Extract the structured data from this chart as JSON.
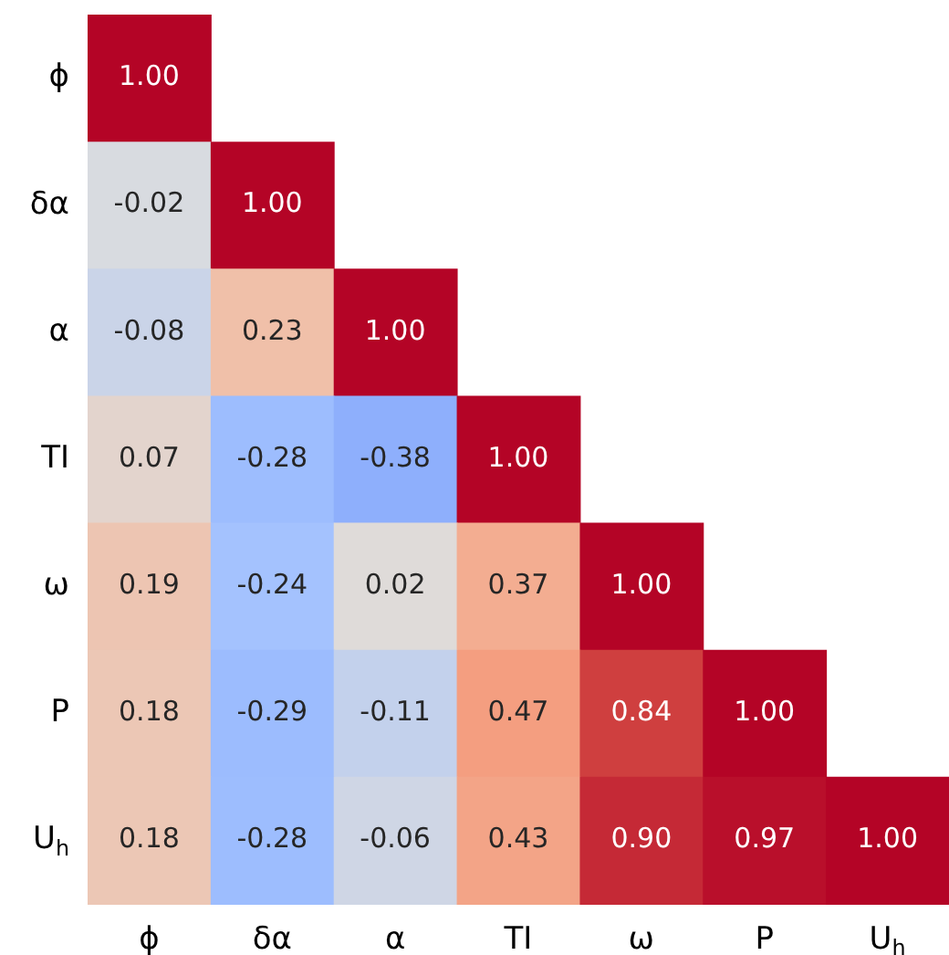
{
  "chart_data": {
    "type": "heatmap",
    "categories": [
      "ϕ",
      "δα",
      "α",
      "TI",
      "ω",
      "P",
      "U$_{h}$"
    ],
    "y_categories": [
      "ϕ",
      "δα",
      "α",
      "TI",
      "ω",
      "P",
      "U$_{h}$"
    ],
    "cells": [
      [
        1.0,
        null,
        null,
        null,
        null,
        null,
        null
      ],
      [
        -0.02,
        1.0,
        null,
        null,
        null,
        null,
        null
      ],
      [
        -0.08,
        0.23,
        1.0,
        null,
        null,
        null,
        null
      ],
      [
        0.07,
        -0.28,
        -0.38,
        1.0,
        null,
        null,
        null
      ],
      [
        0.19,
        -0.24,
        0.02,
        0.37,
        1.0,
        null,
        null
      ],
      [
        0.18,
        -0.29,
        -0.11,
        0.47,
        0.84,
        1.0,
        null
      ],
      [
        0.18,
        -0.28,
        -0.06,
        0.43,
        0.9,
        0.97,
        1.0
      ]
    ],
    "cell_labels": [
      [
        "1.00",
        null,
        null,
        null,
        null,
        null,
        null
      ],
      [
        "-0.02",
        "1.00",
        null,
        null,
        null,
        null,
        null
      ],
      [
        "-0.08",
        "0.23",
        "1.00",
        null,
        null,
        null,
        null
      ],
      [
        "0.07",
        "-0.28",
        "-0.38",
        "1.00",
        null,
        null,
        null
      ],
      [
        "0.19",
        "-0.24",
        "0.02",
        "0.37",
        "1.00",
        null,
        null
      ],
      [
        "0.18",
        "-0.29",
        "-0.11",
        "0.47",
        "0.84",
        "1.00",
        null
      ],
      [
        "0.18",
        "-0.28",
        "-0.06",
        "0.43",
        "0.90",
        "0.97",
        "1.00"
      ]
    ]
  }
}
